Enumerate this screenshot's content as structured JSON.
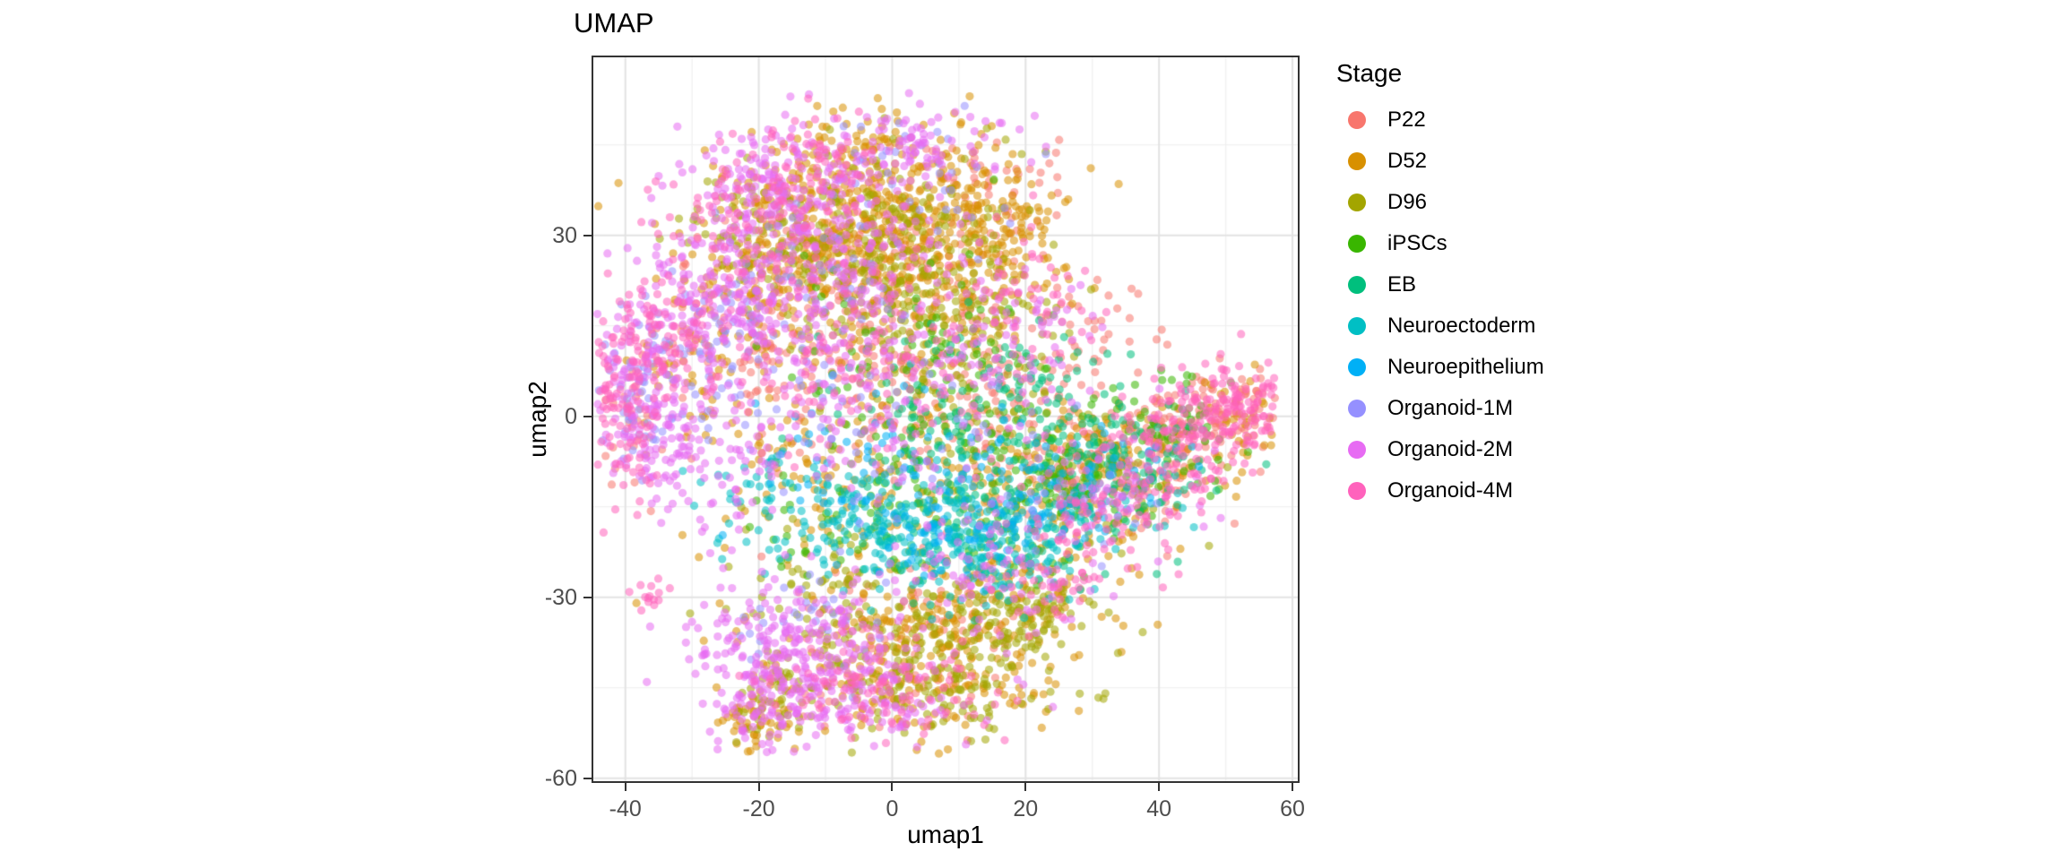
{
  "chart_data": {
    "type": "scatter",
    "title": "UMAP",
    "xlabel": "umap1",
    "ylabel": "umap2",
    "xlim": [
      -44.8,
      60.8
    ],
    "ylim": [
      -60.5,
      59.5
    ],
    "x_ticks": [
      -40,
      -20,
      0,
      20,
      40,
      60
    ],
    "y_ticks": [
      30,
      0,
      -30,
      -60
    ],
    "grid": "major+minor",
    "legend_title": "Stage",
    "legend_position": "right",
    "point_alpha": 0.55,
    "point_radius_px": 4.6,
    "colors": {
      "panel_border": "#333333",
      "grid_major": "#e3e3e3",
      "grid_minor": "#f1f1f1",
      "background": "#ffffff",
      "tick_label": "#4d4d4d"
    },
    "encoding_note": "series point clouds approximated as gaussian blobs [cx, cy, sx, sy, n] in data coordinates",
    "series": [
      {
        "name": "P22",
        "color": "#F8766D",
        "blobs": [
          [
            0,
            24,
            11,
            7,
            140
          ],
          [
            -12,
            8,
            12,
            7,
            90
          ],
          [
            8,
            2,
            12,
            7,
            110
          ],
          [
            32,
            -6,
            9,
            6,
            150
          ],
          [
            45,
            -1,
            6,
            4,
            70
          ],
          [
            28,
            13,
            6,
            5,
            40
          ],
          [
            5,
            -33,
            9,
            6,
            70
          ],
          [
            -25,
            15,
            6,
            6,
            40
          ],
          [
            -38,
            2,
            3,
            6,
            30
          ],
          [
            0,
            -45,
            8,
            4,
            40
          ],
          [
            15,
            38,
            6,
            4,
            40
          ],
          [
            52,
            2,
            3,
            3,
            30
          ]
        ]
      },
      {
        "name": "D52",
        "color": "#D89000",
        "blobs": [
          [
            -5,
            33,
            11,
            8,
            380
          ],
          [
            8,
            22,
            9,
            7,
            180
          ],
          [
            -16,
            24,
            8,
            7,
            140
          ],
          [
            17,
            32,
            5,
            5,
            90
          ],
          [
            0,
            42,
            8,
            5,
            80
          ],
          [
            -6,
            -10,
            13,
            9,
            160
          ],
          [
            5,
            -40,
            11,
            7,
            260
          ],
          [
            -20,
            -50,
            3,
            4,
            60
          ],
          [
            25,
            -13,
            8,
            6,
            110
          ],
          [
            40,
            -6,
            8,
            5,
            70
          ],
          [
            20,
            -30,
            6,
            4,
            60
          ],
          [
            -30,
            8,
            5,
            6,
            40
          ],
          [
            52,
            1,
            3,
            3,
            25
          ]
        ]
      },
      {
        "name": "D96",
        "color": "#A3A500",
        "blobs": [
          [
            -2,
            28,
            11,
            8,
            240
          ],
          [
            8,
            18,
            8,
            6,
            90
          ],
          [
            5,
            -43,
            10,
            6,
            190
          ],
          [
            19,
            -33,
            5,
            4,
            120
          ],
          [
            -10,
            -27,
            7,
            5,
            70
          ],
          [
            12,
            4,
            10,
            7,
            70
          ],
          [
            30,
            -11,
            7,
            5,
            60
          ],
          [
            -18,
            -48,
            3,
            4,
            40
          ],
          [
            -22,
            30,
            6,
            5,
            50
          ]
        ]
      },
      {
        "name": "iPSCs",
        "color": "#39B600",
        "blobs": [
          [
            10,
            -4,
            12,
            8,
            110
          ],
          [
            30,
            -9,
            8,
            6,
            80
          ],
          [
            2,
            14,
            10,
            7,
            60
          ],
          [
            44,
            -1,
            5,
            4,
            40
          ],
          [
            -4,
            -20,
            8,
            5,
            40
          ],
          [
            18,
            -18,
            7,
            5,
            40
          ]
        ]
      },
      {
        "name": "EB",
        "color": "#00BF7D",
        "blobs": [
          [
            15,
            -14,
            10,
            7,
            110
          ],
          [
            30,
            -6,
            8,
            6,
            80
          ],
          [
            6,
            1,
            10,
            7,
            60
          ],
          [
            22,
            6,
            7,
            5,
            40
          ],
          [
            38,
            -10,
            5,
            4,
            30
          ]
        ]
      },
      {
        "name": "Neuroectoderm",
        "color": "#00BFC4",
        "blobs": [
          [
            5,
            -20,
            12,
            5,
            170
          ],
          [
            18,
            -23,
            8,
            5,
            100
          ],
          [
            -8,
            -15,
            8,
            5,
            60
          ],
          [
            30,
            -16,
            6,
            4,
            40
          ],
          [
            -20,
            -10,
            5,
            4,
            25
          ]
        ]
      },
      {
        "name": "Neuroepithelium",
        "color": "#00B0F6",
        "blobs": [
          [
            8,
            -17,
            10,
            5,
            80
          ],
          [
            20,
            -12,
            7,
            5,
            50
          ],
          [
            -4,
            -6,
            8,
            6,
            40
          ],
          [
            34,
            -9,
            5,
            4,
            30
          ]
        ]
      },
      {
        "name": "Organoid-1M",
        "color": "#9590FF",
        "blobs": [
          [
            -26,
            12,
            7,
            7,
            70
          ],
          [
            -39,
            3,
            3,
            6,
            50
          ],
          [
            -12,
            26,
            9,
            7,
            60
          ],
          [
            0,
            -4,
            12,
            8,
            50
          ],
          [
            -14,
            -36,
            6,
            5,
            30
          ],
          [
            4,
            40,
            8,
            5,
            30
          ],
          [
            28,
            -12,
            7,
            5,
            25
          ]
        ]
      },
      {
        "name": "Organoid-2M",
        "color": "#E76BF3",
        "blobs": [
          [
            -13,
            31,
            10,
            8,
            290
          ],
          [
            -26,
            19,
            7,
            6,
            150
          ],
          [
            -38,
            2,
            4,
            7,
            130
          ],
          [
            -14,
            -38,
            8,
            6,
            240
          ],
          [
            -4,
            -48,
            8,
            4,
            110
          ],
          [
            -2,
            6,
            14,
            9,
            210
          ],
          [
            14,
            -25,
            8,
            6,
            90
          ],
          [
            -28,
            -8,
            6,
            6,
            100
          ],
          [
            3,
            45,
            9,
            4,
            90
          ],
          [
            -18,
            40,
            5,
            4,
            60
          ],
          [
            35,
            -12,
            6,
            5,
            60
          ],
          [
            -20,
            -48,
            3,
            4,
            70
          ],
          [
            18,
            15,
            7,
            6,
            60
          ]
        ]
      },
      {
        "name": "Organoid-4M",
        "color": "#FF62BC",
        "blobs": [
          [
            -41,
            2,
            3,
            7,
            110
          ],
          [
            -35,
            13,
            5,
            6,
            80
          ],
          [
            44,
            -3,
            7,
            5,
            140
          ],
          [
            52,
            2,
            4,
            3,
            80
          ],
          [
            31,
            -17,
            8,
            5,
            80
          ],
          [
            -20,
            34,
            7,
            6,
            80
          ],
          [
            -12,
            44,
            6,
            4,
            40
          ],
          [
            0,
            -46,
            9,
            4,
            80
          ],
          [
            -8,
            12,
            12,
            9,
            100
          ],
          [
            20,
            20,
            6,
            5,
            40
          ],
          [
            -36,
            -30,
            2,
            2,
            14
          ],
          [
            25,
            -28,
            5,
            3,
            30
          ]
        ]
      }
    ]
  }
}
